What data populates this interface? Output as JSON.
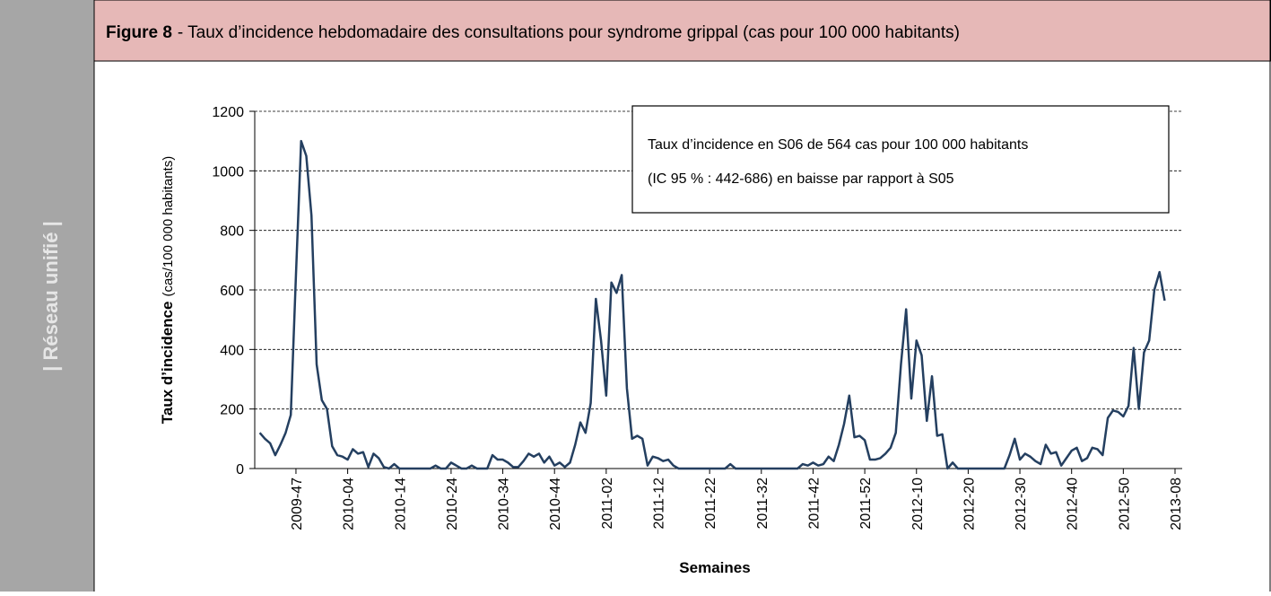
{
  "sidebar": "| Réseau unifié |",
  "chart_data": {
    "type": "line",
    "figure_label": "Figure 8",
    "title": "- Taux d’incidence hebdomadaire des consultations pour syndrome grippal (cas pour 100 000 habitants)",
    "annotation": [
      "Taux d’incidence en S06 de 564 cas pour 100 000 habitants",
      "(IC 95 % : 442-686) en baisse par rapport à S05"
    ],
    "ylabel": "Taux d’incidence",
    "ylabel_unit": "(cas/100 000 habitants)",
    "xlabel": "Semaines",
    "ylim": [
      0,
      1200
    ],
    "yticks": [
      0,
      200,
      400,
      600,
      800,
      1000,
      1200
    ],
    "grid": true,
    "categories": [
      null,
      null,
      null,
      null,
      null,
      null,
      null,
      "2009-47",
      null,
      null,
      null,
      null,
      null,
      null,
      null,
      null,
      null,
      "2010-04",
      null,
      null,
      null,
      null,
      null,
      null,
      null,
      null,
      null,
      "2010-14",
      null,
      null,
      null,
      null,
      null,
      null,
      null,
      null,
      null,
      "2010-24",
      null,
      null,
      null,
      null,
      null,
      null,
      null,
      null,
      null,
      "2010-34",
      null,
      null,
      null,
      null,
      null,
      null,
      null,
      null,
      null,
      "2010-44",
      null,
      null,
      null,
      null,
      null,
      null,
      null,
      null,
      null,
      "2011-02",
      null,
      null,
      null,
      null,
      null,
      null,
      null,
      null,
      null,
      "2011-12",
      null,
      null,
      null,
      null,
      null,
      null,
      null,
      null,
      null,
      "2011-22",
      null,
      null,
      null,
      null,
      null,
      null,
      null,
      null,
      null,
      "2011-32",
      null,
      null,
      null,
      null,
      null,
      null,
      null,
      null,
      null,
      "2011-42",
      null,
      null,
      null,
      null,
      null,
      null,
      null,
      null,
      null,
      "2011-52",
      null,
      null,
      null,
      null,
      null,
      null,
      null,
      null,
      null,
      "2012-10",
      null,
      null,
      null,
      null,
      null,
      null,
      null,
      null,
      null,
      "2012-20",
      null,
      null,
      null,
      null,
      null,
      null,
      null,
      null,
      null,
      "2012-30",
      null,
      null,
      null,
      null,
      null,
      null,
      null,
      null,
      null,
      "2012-40",
      null,
      null,
      null,
      null,
      null,
      null,
      null,
      null,
      null,
      "2012-50",
      null,
      null,
      null,
      null,
      null,
      null,
      null,
      null,
      null,
      "2013-08"
    ],
    "series": [
      {
        "name": "Taux d’incidence",
        "color": "#243f60",
        "values": [
          120,
          100,
          85,
          45,
          80,
          120,
          180,
          650,
          1100,
          1050,
          850,
          350,
          230,
          200,
          75,
          45,
          40,
          30,
          65,
          50,
          55,
          5,
          50,
          35,
          5,
          0,
          15,
          0,
          0,
          0,
          0,
          0,
          0,
          0,
          10,
          0,
          0,
          20,
          10,
          0,
          0,
          10,
          0,
          0,
          0,
          45,
          30,
          30,
          20,
          5,
          5,
          25,
          50,
          40,
          50,
          20,
          40,
          10,
          20,
          5,
          20,
          80,
          155,
          120,
          220,
          570,
          430,
          245,
          625,
          590,
          650,
          270,
          100,
          110,
          100,
          10,
          40,
          35,
          25,
          30,
          10,
          0,
          0,
          0,
          0,
          0,
          0,
          0,
          0,
          0,
          0,
          15,
          0,
          0,
          0,
          0,
          0,
          0,
          0,
          0,
          0,
          0,
          0,
          0,
          0,
          15,
          10,
          20,
          10,
          15,
          40,
          25,
          80,
          150,
          245,
          105,
          110,
          95,
          30,
          30,
          35,
          50,
          70,
          120,
          350,
          535,
          235,
          430,
          380,
          160,
          310,
          110,
          115,
          0,
          20,
          0,
          0,
          0,
          0,
          0,
          0,
          0,
          0,
          0,
          0,
          45,
          100,
          30,
          50,
          40,
          25,
          15,
          80,
          50,
          55,
          10,
          35,
          60,
          70,
          25,
          35,
          70,
          65,
          45,
          170,
          195,
          190,
          175,
          210,
          405,
          200,
          390,
          430,
          600,
          660,
          564,
          null,
          null
        ]
      }
    ]
  }
}
